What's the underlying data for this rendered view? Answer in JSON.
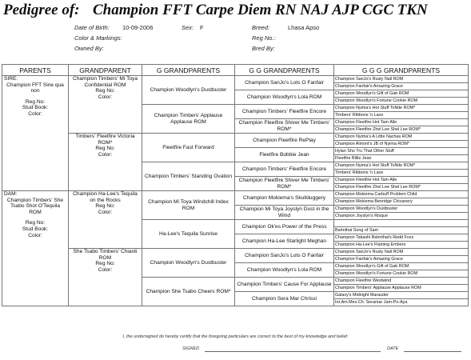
{
  "header": {
    "title_label": "Pedigree of:",
    "dog_name": "Champion FFT Carpe Diem RN NAJ AJP CGC TKN"
  },
  "info": {
    "dob_label": "Date of Birth:",
    "dob": "10-09-2006",
    "sex_label": "Sex:",
    "sex": "F",
    "breed_label": "Breed:",
    "breed": "Lhasa Apso",
    "color_label": "Color & Markings:",
    "regno_label": "Reg No.:",
    "owned_label": "Owned By:",
    "bred_label": "Bred By:"
  },
  "columns": [
    "PARENTS",
    "GRANDPARENT",
    "G GRANDPARENTS",
    "G G GRANDPARENTS",
    "G G G GRANDPARENTS"
  ],
  "fields": {
    "regno": "Reg No:",
    "color": "Color:",
    "stud": "Stud Book:"
  },
  "parents": {
    "sire": {
      "role": "SIRE:",
      "name": "Champion FFT Sine qua non"
    },
    "dam": {
      "role": "DAM:",
      "name": "Champion Timbers' She Tsabo Shot O'Tequila ROM"
    }
  },
  "grandparents": [
    "Champion Timbers' Mi Toya Confidential ROM",
    "Timbers' Fleetfire Victoria ROM*",
    "Champion Ha-Lee's Tequila on the Rocks",
    "She Tsabo Timbers' Chianti ROM"
  ],
  "g_grandparents": [
    "Champion Woodlyn's Dustbuster",
    "Champion Timbers' Applause Applause ROM",
    "Fleetfire Fast Forward",
    "Champion Timbers' Standing Ovation",
    "Champion Mi Toya Windchill Index ROM",
    "Ha-Lee's Tequila Sunrise",
    "Champion Woodlyn's Dustbuster",
    "Champion She Tsabo Cheers ROM*"
  ],
  "gg_grandparents": [
    "Champion SanJo's Lots O Fanfair",
    "Champion Woodlyn's Lola ROM",
    "Champion Timbers' Fleetfire Encore",
    "Champion Fleetfire Shiver Me Timbers' ROM*",
    "Champion Fleetfire RePlay",
    "Fleetfire Bobbie Jean",
    "Champion Timbers' Fleetfire Encore",
    "Champion Fleetfire Shiver Me Timbers' ROM*",
    "Champion Mokiema's Skullduggery",
    "Champion Mi Toya Joyslyn Dust in the Wind",
    "Champion Ok'es Power of the Press",
    "Champion Ha-Lee Starlight Meghan",
    "Champion SanJo's Lots O Fanfair",
    "Champion Woodlyn's Lola ROM",
    "Champion Timbers' Cause For Applause",
    "Champion Sera Mar Chrissi"
  ],
  "ggg_grandparents": [
    "Champion SanJo's Rusty Nail ROM",
    "Champion Fanfair's Amazing Grace",
    "Champion Woodlyn's Gift of Gab ROM",
    "Champion Woodlyn's Fortune Cookie ROM",
    "Champion Nyima's Hot Stuff ToNite ROM*",
    "Timbers' Ribbons 'n Lace",
    "Champion Fleetfire Hot Tam Alle",
    "Champion Fleetfire Zhel Lee Shel Lee ROM*",
    "Champion Nyima's A Little Nachas ROM",
    "Champion Almont's JB of Nyima ROM*",
    "Hylan Sho Tru That Other Stuff",
    "Fleetfire Billie Jean",
    "Champion Nyima's Hot Stuff ToNite ROM*",
    "Timbers' Ribbons 'n Lace",
    "Champion Fleetfire Hot Tam Alle",
    "Champion Fleetfire Zhel Lee Shel Lee ROM*",
    "Champion Mokiema Carbuff Problem Child",
    "Champion Mokiema Benridge Chicanery",
    "Champion Woodlyn's Dustbuster",
    "Champion Joyslyn's Risque",
    "",
    "Bahnthai Song of Sam",
    "Champion Takashi Bahnthai's Redd Foxx",
    "Champion Ha-Lee's Flaming Embers",
    "Champion SanJo's Rusty Nail ROM",
    "Champion Fanfair's Amazing Grace",
    "Champion Woodlyn's Gift of Gab ROM",
    "Champion Woodlyn's Fortune Cookie ROM",
    "Champion Fleetfire Westwind",
    "Champion Timbers' Applause Applause ROM",
    "Galaxy's Midnight Marauder",
    "Int.Am.Mex.Ch. Seramar Jam-Po-Aya"
  ],
  "certification": {
    "statement": "I, the undersigned do hereby certify that the foregoing particulars are correct to the best of my knowledge and belief.",
    "signed_label": "SIGNED",
    "date_label": "DATE"
  }
}
